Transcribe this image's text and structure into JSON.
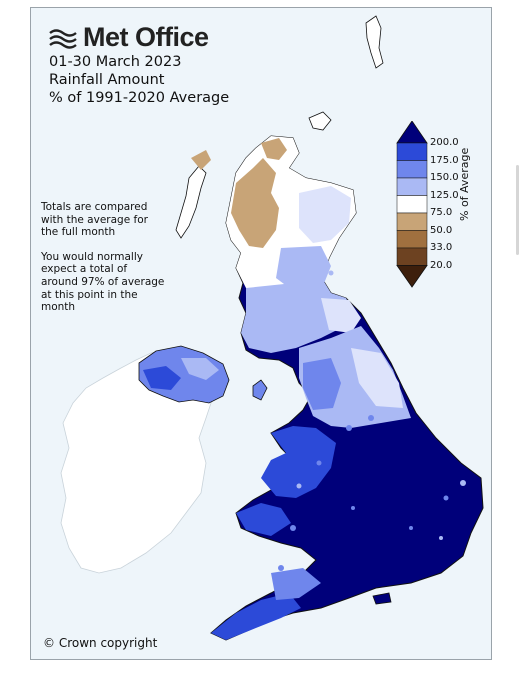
{
  "brand": {
    "name": "Met Office",
    "logo_icon": "wave-lines-icon"
  },
  "titles": [
    "01-30 March 2023",
    "Rainfall Amount",
    "% of 1991-2020 Average"
  ],
  "notes": [
    "Totals are compared with the average for the full month",
    "You would normally expect a total of around 97% of average at this point in the month"
  ],
  "legend": {
    "title": "% of Average",
    "ticks": [
      "200.0",
      "175.0",
      "150.0",
      "125.0",
      "75.0",
      "50.0",
      "33.0",
      "20.0"
    ],
    "colors": [
      "#00007a",
      "#2c4ad8",
      "#6f86ec",
      "#aab9f4",
      "#dde3fb",
      "#ffffff",
      "#c8a477",
      "#a0703f",
      "#6d4221",
      "#3d1f0c"
    ]
  },
  "map_colors": {
    "land_ireland": "#ffffff",
    "sea": "#eef5fa",
    "wettest": "#00007a",
    "very_wet": "#2c4ad8",
    "wet": "#6f86ec",
    "above": "#aab9f4",
    "slightly_above": "#dde3fb",
    "dry": "#c8a477"
  },
  "copyright": "© Crown copyright"
}
